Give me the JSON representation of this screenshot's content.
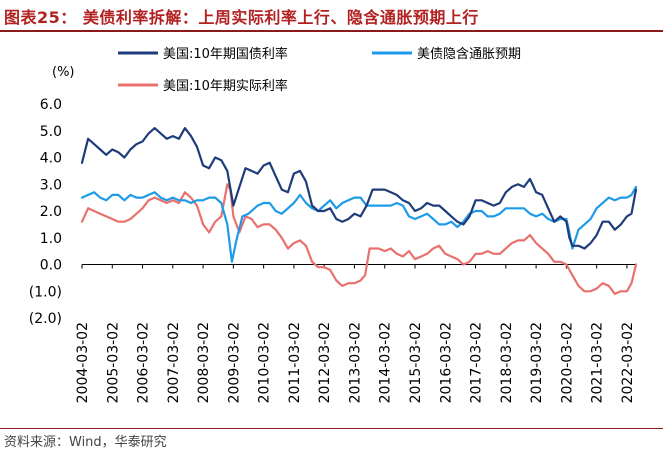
{
  "title": "图表25：  美债利率拆解：上周实际利率上行、隐含通胀预期上行",
  "source": "资料来源：Wind，华泰研究",
  "chart_data": {
    "type": "line",
    "title": "美债利率拆解：上周实际利率上行、隐含通胀预期上行",
    "ylabel": "(%)",
    "ylim": [
      -2.0,
      6.0
    ],
    "yticks": [
      6.0,
      5.0,
      4.0,
      3.0,
      2.0,
      1.0,
      0.0,
      -1.0,
      -2.0
    ],
    "ytick_labels": [
      "6.0",
      "5.0",
      "4.0",
      "3.0",
      "2.0",
      "1.0",
      "0.0",
      "(1.0)",
      "(2.0)"
    ],
    "xlim": [
      2004.0,
      2022.3
    ],
    "xticks": [
      2004,
      2005,
      2006,
      2007,
      2008,
      2009,
      2010,
      2011,
      2012,
      2013,
      2014,
      2015,
      2016,
      2017,
      2018,
      2019,
      2020,
      2021,
      2022
    ],
    "xtick_labels": [
      "2004-03-02",
      "2005-03-02",
      "2006-03-02",
      "2007-03-02",
      "2008-03-02",
      "2009-03-02",
      "2010-03-02",
      "2011-03-02",
      "2012-03-02",
      "2013-03-02",
      "2014-03-02",
      "2015-03-02",
      "2016-03-02",
      "2017-03-02",
      "2018-03-02",
      "2019-03-02",
      "2020-03-02",
      "2021-03-02",
      "2022-03-02"
    ],
    "series": [
      {
        "name": "美国:10年期国债利率",
        "color": "#1f3c7a",
        "x": [
          2004.0,
          2004.2,
          2004.4,
          2004.6,
          2004.8,
          2005.0,
          2005.2,
          2005.4,
          2005.6,
          2005.8,
          2006.0,
          2006.2,
          2006.4,
          2006.6,
          2006.8,
          2007.0,
          2007.2,
          2007.4,
          2007.6,
          2007.8,
          2008.0,
          2008.2,
          2008.4,
          2008.6,
          2008.8,
          2009.0,
          2009.2,
          2009.4,
          2009.6,
          2009.8,
          2010.0,
          2010.2,
          2010.4,
          2010.6,
          2010.8,
          2011.0,
          2011.2,
          2011.4,
          2011.6,
          2011.8,
          2012.0,
          2012.2,
          2012.4,
          2012.6,
          2012.8,
          2013.0,
          2013.2,
          2013.4,
          2013.6,
          2013.8,
          2014.0,
          2014.2,
          2014.4,
          2014.6,
          2014.8,
          2015.0,
          2015.2,
          2015.4,
          2015.6,
          2015.8,
          2016.0,
          2016.2,
          2016.4,
          2016.6,
          2016.8,
          2017.0,
          2017.2,
          2017.4,
          2017.6,
          2017.8,
          2018.0,
          2018.2,
          2018.4,
          2018.6,
          2018.8,
          2019.0,
          2019.2,
          2019.4,
          2019.6,
          2019.8,
          2020.0,
          2020.1,
          2020.2,
          2020.4,
          2020.6,
          2020.8,
          2021.0,
          2021.2,
          2021.4,
          2021.6,
          2021.8,
          2022.0,
          2022.15,
          2022.3
        ],
        "y": [
          3.8,
          4.7,
          4.5,
          4.3,
          4.1,
          4.3,
          4.2,
          4.0,
          4.3,
          4.5,
          4.6,
          4.9,
          5.1,
          4.9,
          4.7,
          4.8,
          4.7,
          5.1,
          4.8,
          4.4,
          3.7,
          3.6,
          4.0,
          3.9,
          3.5,
          2.2,
          2.9,
          3.6,
          3.5,
          3.4,
          3.7,
          3.8,
          3.3,
          2.8,
          2.7,
          3.4,
          3.5,
          3.1,
          2.2,
          2.0,
          2.0,
          2.1,
          1.7,
          1.6,
          1.7,
          1.9,
          1.8,
          2.2,
          2.8,
          2.8,
          2.8,
          2.7,
          2.6,
          2.4,
          2.3,
          2.0,
          2.1,
          2.3,
          2.2,
          2.2,
          2.0,
          1.8,
          1.6,
          1.5,
          1.8,
          2.4,
          2.4,
          2.3,
          2.2,
          2.3,
          2.7,
          2.9,
          3.0,
          2.9,
          3.2,
          2.7,
          2.6,
          2.1,
          1.6,
          1.8,
          1.6,
          1.0,
          0.7,
          0.7,
          0.6,
          0.8,
          1.1,
          1.6,
          1.6,
          1.3,
          1.5,
          1.8,
          1.9,
          2.8
        ]
      },
      {
        "name": "美债隐含通胀预期",
        "color": "#1e9be8",
        "x": [
          2004.0,
          2004.2,
          2004.4,
          2004.6,
          2004.8,
          2005.0,
          2005.2,
          2005.4,
          2005.6,
          2005.8,
          2006.0,
          2006.2,
          2006.4,
          2006.6,
          2006.8,
          2007.0,
          2007.2,
          2007.4,
          2007.6,
          2007.8,
          2008.0,
          2008.2,
          2008.4,
          2008.6,
          2008.8,
          2008.95,
          2009.1,
          2009.3,
          2009.5,
          2009.8,
          2010.0,
          2010.2,
          2010.4,
          2010.6,
          2010.8,
          2011.0,
          2011.2,
          2011.4,
          2011.6,
          2011.8,
          2012.0,
          2012.2,
          2012.4,
          2012.6,
          2012.8,
          2013.0,
          2013.2,
          2013.4,
          2013.6,
          2013.8,
          2014.0,
          2014.2,
          2014.4,
          2014.6,
          2014.8,
          2015.0,
          2015.2,
          2015.4,
          2015.6,
          2015.8,
          2016.0,
          2016.2,
          2016.4,
          2016.6,
          2016.8,
          2017.0,
          2017.2,
          2017.4,
          2017.6,
          2017.8,
          2018.0,
          2018.2,
          2018.4,
          2018.6,
          2018.8,
          2019.0,
          2019.2,
          2019.4,
          2019.6,
          2019.8,
          2020.0,
          2020.1,
          2020.2,
          2020.4,
          2020.6,
          2020.8,
          2021.0,
          2021.2,
          2021.4,
          2021.6,
          2021.8,
          2022.0,
          2022.15,
          2022.3
        ],
        "y": [
          2.5,
          2.6,
          2.7,
          2.5,
          2.4,
          2.6,
          2.6,
          2.4,
          2.6,
          2.5,
          2.5,
          2.6,
          2.7,
          2.5,
          2.4,
          2.5,
          2.4,
          2.4,
          2.3,
          2.4,
          2.4,
          2.5,
          2.5,
          2.3,
          1.5,
          0.1,
          0.9,
          1.8,
          1.9,
          2.2,
          2.3,
          2.3,
          2.0,
          1.9,
          2.1,
          2.3,
          2.6,
          2.3,
          2.1,
          2.0,
          2.2,
          2.4,
          2.1,
          2.3,
          2.4,
          2.5,
          2.5,
          2.2,
          2.2,
          2.2,
          2.2,
          2.2,
          2.3,
          2.2,
          1.8,
          1.7,
          1.8,
          1.9,
          1.7,
          1.5,
          1.5,
          1.6,
          1.4,
          1.6,
          1.9,
          2.0,
          2.0,
          1.8,
          1.8,
          1.9,
          2.1,
          2.1,
          2.1,
          2.1,
          1.9,
          1.8,
          1.9,
          1.7,
          1.6,
          1.7,
          1.7,
          1.2,
          0.6,
          1.3,
          1.5,
          1.7,
          2.1,
          2.3,
          2.5,
          2.4,
          2.5,
          2.5,
          2.6,
          2.9
        ]
      },
      {
        "name": "美国:10年期实际利率",
        "color": "#e8716d",
        "x": [
          2004.0,
          2004.2,
          2004.4,
          2004.6,
          2004.8,
          2005.0,
          2005.2,
          2005.4,
          2005.6,
          2005.8,
          2006.0,
          2006.2,
          2006.4,
          2006.6,
          2006.8,
          2007.0,
          2007.2,
          2007.4,
          2007.6,
          2007.8,
          2008.0,
          2008.2,
          2008.4,
          2008.6,
          2008.8,
          2008.9,
          2009.0,
          2009.2,
          2009.4,
          2009.6,
          2009.8,
          2010.0,
          2010.2,
          2010.4,
          2010.6,
          2010.8,
          2011.0,
          2011.2,
          2011.4,
          2011.6,
          2011.8,
          2012.0,
          2012.2,
          2012.4,
          2012.6,
          2012.8,
          2013.0,
          2013.2,
          2013.35,
          2013.5,
          2013.8,
          2014.0,
          2014.2,
          2014.4,
          2014.6,
          2014.8,
          2015.0,
          2015.2,
          2015.4,
          2015.6,
          2015.8,
          2016.0,
          2016.2,
          2016.4,
          2016.6,
          2016.8,
          2017.0,
          2017.2,
          2017.4,
          2017.6,
          2017.8,
          2018.0,
          2018.2,
          2018.4,
          2018.6,
          2018.8,
          2019.0,
          2019.2,
          2019.4,
          2019.6,
          2019.8,
          2020.0,
          2020.1,
          2020.2,
          2020.4,
          2020.6,
          2020.8,
          2021.0,
          2021.2,
          2021.4,
          2021.6,
          2021.8,
          2022.0,
          2022.15,
          2022.3
        ],
        "y": [
          1.6,
          2.1,
          2.0,
          1.9,
          1.8,
          1.7,
          1.6,
          1.6,
          1.7,
          1.9,
          2.1,
          2.4,
          2.5,
          2.4,
          2.3,
          2.4,
          2.3,
          2.7,
          2.5,
          2.2,
          1.5,
          1.2,
          1.6,
          1.8,
          3.0,
          2.8,
          1.8,
          1.2,
          1.8,
          1.7,
          1.4,
          1.5,
          1.5,
          1.3,
          1.0,
          0.6,
          0.8,
          0.9,
          0.7,
          0.1,
          -0.1,
          -0.1,
          -0.2,
          -0.6,
          -0.8,
          -0.7,
          -0.7,
          -0.6,
          -0.4,
          0.6,
          0.6,
          0.5,
          0.6,
          0.4,
          0.3,
          0.5,
          0.2,
          0.3,
          0.4,
          0.6,
          0.7,
          0.4,
          0.3,
          0.2,
          0.0,
          0.1,
          0.4,
          0.4,
          0.5,
          0.4,
          0.4,
          0.6,
          0.8,
          0.9,
          0.9,
          1.1,
          0.8,
          0.6,
          0.4,
          0.1,
          0.1,
          0.0,
          -0.2,
          -0.4,
          -0.8,
          -1.0,
          -1.0,
          -0.9,
          -0.7,
          -0.8,
          -1.1,
          -1.0,
          -1.0,
          -0.7,
          0.0
        ]
      }
    ],
    "legend": [
      {
        "label": "美国:10年期国债利率",
        "color": "#1f3c7a"
      },
      {
        "label": "美债隐含通胀预期",
        "color": "#1e9be8"
      },
      {
        "label": "美国:10年期实际利率",
        "color": "#e8716d"
      }
    ]
  }
}
